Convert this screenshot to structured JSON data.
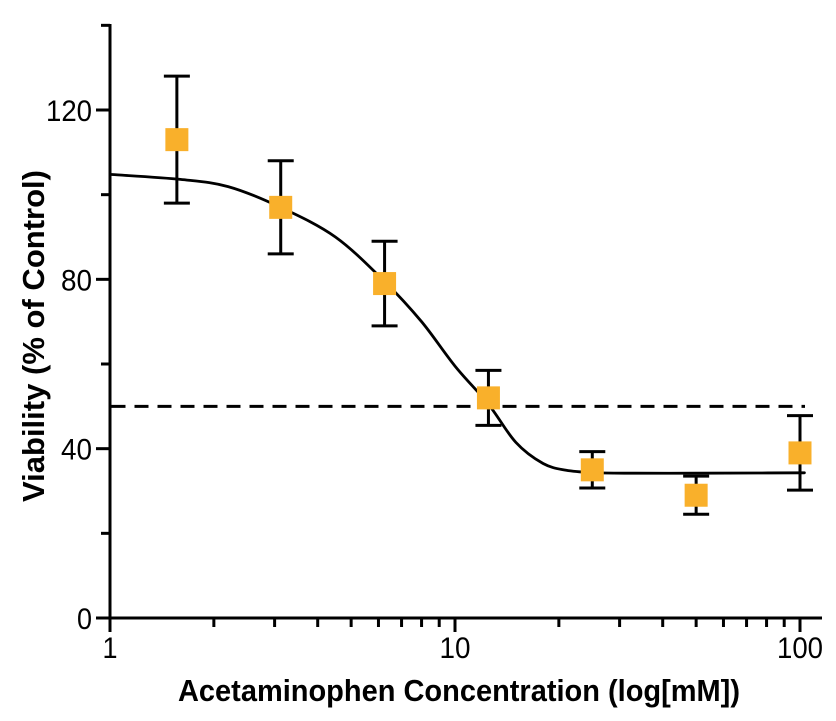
{
  "figure": {
    "background": "#FFFFFF",
    "axis_color": "#000000"
  },
  "chart_data": {
    "type": "scatter",
    "title": "",
    "xlabel": "Acetaminophen Concentration (log[mM])",
    "ylabel": "Viability (% of Control)",
    "x_scale": "log10",
    "xlim": [
      1,
      115
    ],
    "ylim": [
      0,
      140
    ],
    "grid": "off",
    "legend": "none",
    "x_axis": {
      "ticks_major": [
        {
          "value": 1,
          "label": "1"
        },
        {
          "value": 10,
          "label": "10"
        },
        {
          "value": 100,
          "label": "100"
        }
      ],
      "ticks_minor": [
        2,
        3,
        4,
        5,
        6,
        7,
        8,
        9,
        20,
        30,
        40,
        50,
        60,
        70,
        80,
        90
      ]
    },
    "y_axis": {
      "ticks_major": [
        {
          "value": 0,
          "label": "0"
        },
        {
          "value": 40,
          "label": "40"
        },
        {
          "value": 80,
          "label": "80"
        },
        {
          "value": 120,
          "label": "120"
        }
      ],
      "ticks_minor": [
        20,
        60,
        100,
        140
      ]
    },
    "series": [
      {
        "name": "Viability (% of Control)",
        "marker": "filled-square",
        "marker_color": "#F9B02B",
        "error_bar_color": "#000000",
        "points": [
          {
            "x": 1.5625,
            "y": 113,
            "err": 15
          },
          {
            "x": 3.125,
            "y": 97,
            "err": 11
          },
          {
            "x": 6.25,
            "y": 79,
            "err": 10
          },
          {
            "x": 12.5,
            "y": 52,
            "err": 6.5
          },
          {
            "x": 25,
            "y": 35,
            "err": 4.3
          },
          {
            "x": 50,
            "y": 29,
            "err": 4.5
          },
          {
            "x": 100,
            "y": 39,
            "err": 8.8
          }
        ]
      }
    ],
    "fit_curve": {
      "color": "#000000",
      "top": 105,
      "bottom": 34.2,
      "ec50": 8,
      "samples": [
        [
          1,
          104.8
        ],
        [
          1.6,
          103.6
        ],
        [
          2.2,
          101.9
        ],
        [
          3.125,
          97
        ],
        [
          4.5,
          90
        ],
        [
          6.25,
          79.5
        ],
        [
          8,
          70
        ],
        [
          10,
          59.5
        ],
        [
          12.5,
          50.5
        ],
        [
          15,
          41.5
        ],
        [
          18,
          36.5
        ],
        [
          21,
          34.9
        ],
        [
          25,
          34.35
        ],
        [
          32,
          34.2
        ],
        [
          50,
          34.2
        ],
        [
          75,
          34.25
        ],
        [
          103,
          34.3
        ]
      ]
    },
    "reference_line": {
      "y": 50,
      "style": "dashed",
      "color": "#000000"
    }
  }
}
